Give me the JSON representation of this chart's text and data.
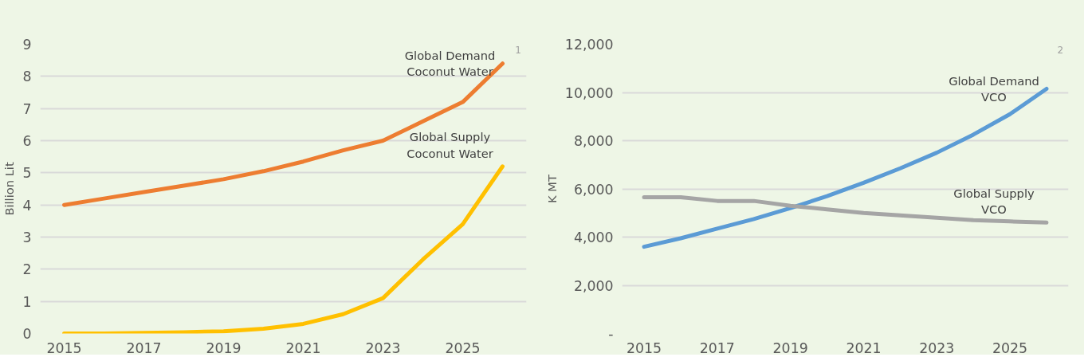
{
  "chart_data": [
    {
      "type": "line",
      "ylabel": "Billion Lit",
      "annotations": [
        "1"
      ],
      "categories": [
        "2015",
        null,
        "2017",
        null,
        "2019",
        null,
        "2021",
        null,
        "2023",
        null,
        "2025",
        null
      ],
      "ylim": [
        0,
        9
      ],
      "yticks": [
        0,
        1,
        2,
        3,
        4,
        5,
        6,
        7,
        8,
        9
      ],
      "grid": "y",
      "series": [
        {
          "name": "Global Demand Coconut Water",
          "color": "#ed7d31",
          "values": [
            4.0,
            4.2,
            4.4,
            4.6,
            4.8,
            5.05,
            5.35,
            5.7,
            6.0,
            6.6,
            7.2,
            8.4
          ]
        },
        {
          "name": "Global Supply Coconut Water",
          "color": "#ffc000",
          "values": [
            0,
            0,
            0.02,
            0.04,
            0.07,
            0.15,
            0.3,
            0.6,
            1.1,
            2.3,
            3.4,
            5.2
          ]
        }
      ]
    },
    {
      "type": "line",
      "ylabel": "K MT",
      "annotations": [
        "2"
      ],
      "categories": [
        "2015",
        null,
        "2017",
        null,
        "2019",
        null,
        "2021",
        null,
        "2023",
        null,
        "2025",
        null
      ],
      "ylim": [
        0,
        12000
      ],
      "yticks": [
        {
          "value": 0,
          "label": "-"
        },
        {
          "value": 2000,
          "label": "2,000"
        },
        {
          "value": 4000,
          "label": "4,000"
        },
        {
          "value": 6000,
          "label": "6,000"
        },
        {
          "value": 8000,
          "label": "8,000"
        },
        {
          "value": 10000,
          "label": "10,000"
        },
        {
          "value": 12000,
          "label": "12,000"
        }
      ],
      "grid": "y",
      "series": [
        {
          "name": "Global Demand VCO",
          "color": "#5b9bd5",
          "values": [
            3600,
            3950,
            4350,
            4750,
            5200,
            5700,
            6250,
            6850,
            7500,
            8250,
            9100,
            10150
          ]
        },
        {
          "name": "Global Supply VCO",
          "color": "#a5a5a5",
          "values": [
            5650,
            5650,
            5500,
            5500,
            5300,
            5150,
            5000,
            4900,
            4800,
            4700,
            4650,
            4600
          ]
        }
      ]
    }
  ]
}
